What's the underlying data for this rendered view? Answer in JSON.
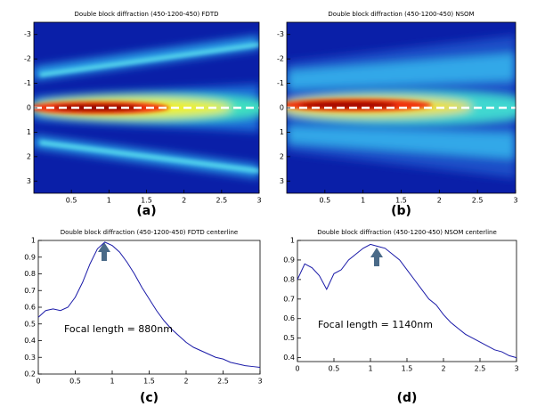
{
  "chart_data": [
    {
      "type": "heatmap",
      "title": "Double block diffraction (450-1200-450) FDTD",
      "label": "(a)",
      "xlim": [
        0,
        3
      ],
      "xticks": [
        0.5,
        1,
        1.5,
        2,
        2.5,
        3
      ],
      "ylim": [
        -3.5,
        3.5
      ],
      "yticks": [
        -3,
        -2,
        -1,
        0,
        1,
        2,
        3
      ],
      "y_inverted": true
    },
    {
      "type": "heatmap",
      "title": "Double block diffraction (450-1200-450) NSOM",
      "label": "(b)",
      "xlim": [
        0,
        3
      ],
      "xticks": [
        0.5,
        1,
        1.5,
        2,
        2.5,
        3
      ],
      "ylim": [
        -3.5,
        3.5
      ],
      "yticks": [
        -3,
        -2,
        -1,
        0,
        1,
        2,
        3
      ],
      "y_inverted": true
    },
    {
      "type": "line",
      "title": "Double block diffraction (450-1200-450) FDTD centerline",
      "label": "(c)",
      "annotation": "Focal length = 880nm",
      "color": "#1a1aa8",
      "xlim": [
        0,
        3
      ],
      "xticks": [
        0,
        0.5,
        1,
        1.5,
        2,
        2.5,
        3
      ],
      "ylim": [
        0.2,
        1
      ],
      "yticks": [
        0.2,
        0.3,
        0.4,
        0.5,
        0.6,
        0.7,
        0.8,
        0.9,
        1
      ],
      "x": [
        0,
        0.1,
        0.2,
        0.3,
        0.4,
        0.5,
        0.6,
        0.7,
        0.8,
        0.9,
        1.0,
        1.1,
        1.2,
        1.3,
        1.4,
        1.5,
        1.6,
        1.7,
        1.8,
        1.9,
        2.0,
        2.1,
        2.2,
        2.3,
        2.4,
        2.5,
        2.6,
        2.7,
        2.8,
        2.9,
        3.0
      ],
      "values": [
        0.54,
        0.58,
        0.59,
        0.58,
        0.6,
        0.66,
        0.75,
        0.86,
        0.95,
        0.99,
        0.97,
        0.93,
        0.87,
        0.8,
        0.72,
        0.65,
        0.58,
        0.52,
        0.47,
        0.43,
        0.39,
        0.36,
        0.34,
        0.32,
        0.3,
        0.29,
        0.27,
        0.26,
        0.25,
        0.245,
        0.24
      ]
    },
    {
      "type": "line",
      "title": "Double block diffraction (450-1200-450) NSOM centerline",
      "label": "(d)",
      "annotation": "Focal length = 1140nm",
      "color": "#1a1aa8",
      "xlim": [
        0,
        3
      ],
      "xticks": [
        0,
        0.5,
        1,
        1.5,
        2,
        2.5,
        3
      ],
      "ylim": [
        0.38,
        1
      ],
      "yticks": [
        0.4,
        0.5,
        0.6,
        0.7,
        0.8,
        0.9,
        1
      ],
      "x": [
        0,
        0.1,
        0.2,
        0.3,
        0.4,
        0.5,
        0.6,
        0.7,
        0.8,
        0.9,
        1.0,
        1.1,
        1.2,
        1.3,
        1.4,
        1.5,
        1.6,
        1.7,
        1.8,
        1.9,
        2.0,
        2.1,
        2.2,
        2.3,
        2.4,
        2.5,
        2.6,
        2.7,
        2.8,
        2.9,
        3.0
      ],
      "values": [
        0.8,
        0.88,
        0.86,
        0.82,
        0.75,
        0.83,
        0.85,
        0.9,
        0.93,
        0.96,
        0.98,
        0.97,
        0.96,
        0.93,
        0.9,
        0.85,
        0.8,
        0.75,
        0.7,
        0.67,
        0.62,
        0.58,
        0.55,
        0.52,
        0.5,
        0.48,
        0.46,
        0.44,
        0.43,
        0.41,
        0.4
      ]
    }
  ]
}
